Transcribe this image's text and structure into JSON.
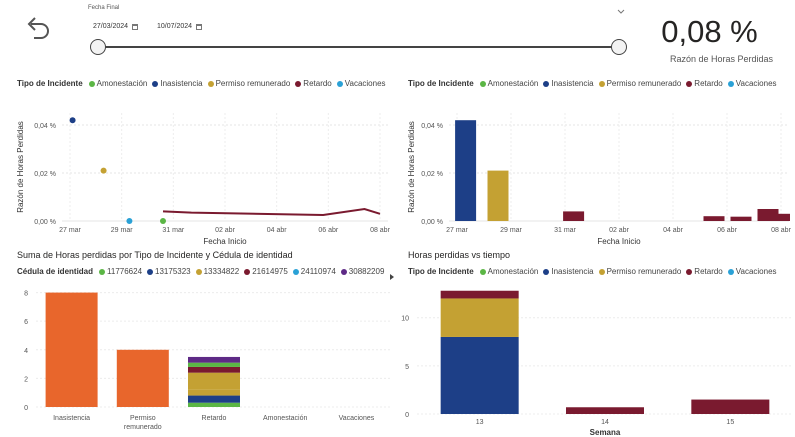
{
  "colors": {
    "amonestacion": "#5bb645",
    "inasistencia": "#1d3f87",
    "permiso": "#c4a133",
    "retardo": "#7a1a2f",
    "vacaciones": "#2aa1d6",
    "orange": "#e8662c",
    "ced_green": "#5bb645",
    "ced_navy": "#1d3f87",
    "ced_gold": "#c4a133",
    "ced_maroon": "#7a1a2f",
    "ced_cyan": "#2aa1d6",
    "ced_purple": "#5e2a86"
  },
  "back_icon": "undo-arrow-icon",
  "slicer": {
    "title": "Fecha Final",
    "start_date": "27/03/2024",
    "end_date": "10/07/2024",
    "calendar_icon": "calendar-icon",
    "chevron_icon": "chevron-down-icon"
  },
  "kpi": {
    "value": "0,08 %",
    "label": "Razón de Horas Perdidas"
  },
  "incident_legend": {
    "title": "Tipo de Incidente",
    "items": [
      "Amonestación",
      "Inasistencia",
      "Permiso remunerado",
      "Retardo",
      "Vacaciones"
    ]
  },
  "chart_scatter": {
    "chart_data": {
      "type": "scatter",
      "ylabel": "Razón de Horas Perdidas",
      "xlabel": "Fecha Inicio",
      "x_ticks": [
        "27 mar",
        "29 mar",
        "31 mar",
        "02 abr",
        "04 abr",
        "06 abr",
        "08 abr"
      ],
      "y_ticks": [
        "0,00 %",
        "0,02 %",
        "0,04 %"
      ],
      "ylim": [
        0,
        0.045
      ],
      "xlim": [
        0,
        12
      ],
      "points": [
        {
          "series": "Inasistencia",
          "x": 0.1,
          "y": 0.042
        },
        {
          "series": "Permiso remunerado",
          "x": 1.3,
          "y": 0.021
        },
        {
          "series": "Vacaciones",
          "x": 2.3,
          "y": 0.0
        },
        {
          "series": "Amonestación",
          "x": 3.6,
          "y": 0.0
        }
      ],
      "line": {
        "series": "Retardo",
        "x": [
          3.6,
          4.7,
          9.8,
          11.4,
          12.0
        ],
        "y": [
          0.004,
          0.0035,
          0.0025,
          0.005,
          0.003
        ]
      }
    }
  },
  "chart_bars_date": {
    "chart_data": {
      "type": "bar",
      "ylabel": "Razón de Horas Perdidas",
      "xlabel": "Fecha Inicio",
      "x_ticks": [
        "27 mar",
        "29 mar",
        "31 mar",
        "02 abr",
        "04 abr",
        "06 abr",
        "08 abr"
      ],
      "y_ticks": [
        "0,00 %",
        "0,02 %",
        "0,04 %"
      ],
      "ylim": [
        0,
        0.045
      ],
      "xlim": [
        0,
        12
      ],
      "bars": [
        {
          "series": "Inasistencia",
          "x": 0.3,
          "value": 0.042
        },
        {
          "series": "Permiso remunerado",
          "x": 1.5,
          "value": 0.021
        },
        {
          "series": "Retardo",
          "x": 4.3,
          "value": 0.004
        },
        {
          "series": "Retardo",
          "x": 9.5,
          "value": 0.002
        },
        {
          "series": "Retardo",
          "x": 10.5,
          "value": 0.0018
        },
        {
          "series": "Retardo",
          "x": 11.5,
          "value": 0.005
        },
        {
          "series": "Retardo",
          "x": 12.5,
          "value": 0.003
        }
      ]
    }
  },
  "chart_stacked_ced": {
    "title": "Suma de Horas perdidas por Tipo de Incidente y Cédula de identidad",
    "legend": {
      "title": "Cédula de identidad",
      "items": [
        "11776624",
        "13175323",
        "13334822",
        "21614975",
        "24110974",
        "30882209"
      ],
      "more_icon": "chevron-right-icon"
    },
    "chart_data": {
      "type": "bar",
      "categories": [
        "Inasistencia",
        "Permiso remunerado",
        "Retardo",
        "Amonestación",
        "Vacaciones"
      ],
      "y_ticks": [
        "0",
        "2",
        "4",
        "6",
        "8"
      ],
      "ylim": [
        0,
        8.6
      ],
      "stacks": [
        [
          {
            "value": 8.0,
            "color": "orange"
          }
        ],
        [
          {
            "value": 4.0,
            "color": "orange"
          }
        ],
        [
          {
            "value": 0.3,
            "color": "ced_green"
          },
          {
            "value": 0.5,
            "color": "ced_navy"
          },
          {
            "value": 0.4,
            "color": "ced_gold"
          },
          {
            "value": 1.2,
            "color": "ced_gold"
          },
          {
            "value": 0.4,
            "color": "ced_maroon"
          },
          {
            "value": 0.3,
            "color": "ced_green"
          },
          {
            "value": 0.4,
            "color": "ced_purple"
          }
        ],
        [],
        []
      ]
    }
  },
  "chart_weekly": {
    "title": "Horas perdidas vs tiempo",
    "chart_data": {
      "type": "bar",
      "xlabel": "Semana",
      "categories": [
        "13",
        "14",
        "15"
      ],
      "y_ticks": [
        "0",
        "5",
        "10"
      ],
      "ylim": [
        0,
        13.5
      ],
      "series": [
        {
          "name": "Inasistencia",
          "values": [
            8,
            0,
            0
          ]
        },
        {
          "name": "Permiso remunerado",
          "values": [
            4,
            0,
            0
          ]
        },
        {
          "name": "Retardo",
          "values": [
            0.8,
            0.7,
            1.5
          ]
        }
      ]
    }
  }
}
